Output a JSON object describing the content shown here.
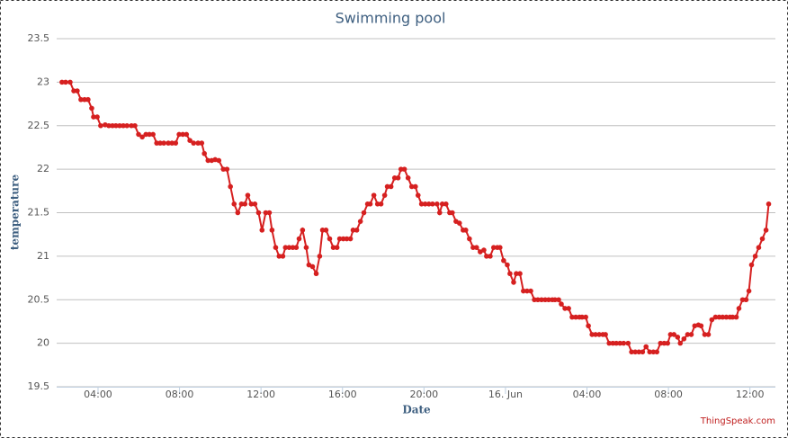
{
  "chart_data": {
    "type": "line",
    "title": "Swimming pool",
    "x_label": "Date",
    "y_label": "temperature",
    "credit": "ThingSpeak.com",
    "xlim": [
      1.97,
      37.25
    ],
    "ylim": [
      19.5,
      23.5
    ],
    "xticks": [
      {
        "value": 4,
        "label": "04:00"
      },
      {
        "value": 8,
        "label": "08:00"
      },
      {
        "value": 12,
        "label": "12:00"
      },
      {
        "value": 16,
        "label": "16:00"
      },
      {
        "value": 20,
        "label": "20:00"
      },
      {
        "value": 24,
        "label": "16. Jun"
      },
      {
        "value": 28,
        "label": "04:00"
      },
      {
        "value": 32,
        "label": "08:00"
      },
      {
        "value": 36,
        "label": "12:00"
      }
    ],
    "yticks": [
      19.5,
      20,
      20.5,
      21,
      21.5,
      22,
      22.5,
      23,
      23.5
    ],
    "grid": true,
    "series": [
      {
        "name": "temperature",
        "color": "#d62020",
        "x": [
          2.23,
          2.41,
          2.63,
          2.81,
          2.98,
          3.16,
          3.34,
          3.51,
          3.69,
          3.78,
          3.96,
          4.13,
          4.35,
          4.53,
          4.71,
          4.88,
          5.06,
          5.24,
          5.42,
          5.64,
          5.81,
          5.99,
          6.17,
          6.35,
          6.52,
          6.7,
          6.88,
          7.05,
          7.23,
          7.45,
          7.63,
          7.81,
          7.98,
          8.16,
          8.34,
          8.51,
          8.69,
          8.91,
          9.09,
          9.22,
          9.4,
          9.58,
          9.75,
          9.93,
          10.15,
          10.33,
          10.5,
          10.68,
          10.86,
          11.04,
          11.21,
          11.35,
          11.52,
          11.7,
          11.88,
          12.05,
          12.23,
          12.41,
          12.54,
          12.72,
          12.89,
          13.07,
          13.2,
          13.38,
          13.56,
          13.73,
          13.87,
          14.04,
          14.22,
          14.35,
          14.53,
          14.71,
          14.88,
          15.02,
          15.19,
          15.37,
          15.55,
          15.73,
          15.86,
          16.04,
          16.21,
          16.39,
          16.52,
          16.7,
          16.88,
          17.05,
          17.23,
          17.36,
          17.54,
          17.72,
          17.89,
          18.07,
          18.2,
          18.38,
          18.56,
          18.73,
          18.87,
          19.04,
          19.22,
          19.4,
          19.58,
          19.71,
          19.88,
          20.06,
          20.24,
          20.42,
          20.64,
          20.77,
          20.9,
          21.08,
          21.26,
          21.39,
          21.57,
          21.74,
          21.92,
          22.05,
          22.23,
          22.41,
          22.58,
          22.76,
          22.94,
          23.07,
          23.25,
          23.42,
          23.6,
          23.73,
          23.91,
          24.09,
          24.22,
          24.4,
          24.53,
          24.71,
          24.88,
          25.06,
          25.24,
          25.42,
          25.59,
          25.77,
          25.95,
          26.12,
          26.3,
          26.43,
          26.61,
          26.74,
          26.92,
          27.1,
          27.27,
          27.45,
          27.63,
          27.76,
          27.94,
          28.07,
          28.25,
          28.42,
          28.6,
          28.78,
          28.91,
          29.09,
          29.27,
          29.44,
          29.62,
          29.8,
          30.02,
          30.19,
          30.37,
          30.55,
          30.73,
          30.9,
          31.08,
          31.26,
          31.43,
          31.61,
          31.79,
          31.96,
          32.1,
          32.27,
          32.45,
          32.58,
          32.76,
          32.94,
          33.12,
          33.29,
          33.47,
          33.6,
          33.78,
          33.96,
          34.13,
          34.31,
          34.49,
          34.66,
          34.84,
          35.02,
          35.15,
          35.33,
          35.46,
          35.64,
          35.81,
          35.95,
          36.08,
          36.26,
          36.43,
          36.61,
          36.79,
          36.92
        ],
        "values": [
          23,
          23,
          23,
          22.9,
          22.9,
          22.8,
          22.8,
          22.8,
          22.7,
          22.6,
          22.6,
          22.5,
          22.51,
          22.5,
          22.5,
          22.5,
          22.5,
          22.5,
          22.5,
          22.5,
          22.5,
          22.4,
          22.37,
          22.4,
          22.4,
          22.4,
          22.3,
          22.3,
          22.3,
          22.3,
          22.3,
          22.3,
          22.4,
          22.4,
          22.4,
          22.33,
          22.3,
          22.3,
          22.3,
          22.18,
          22.1,
          22.1,
          22.11,
          22.1,
          22,
          22,
          21.8,
          21.6,
          21.5,
          21.6,
          21.6,
          21.7,
          21.6,
          21.6,
          21.5,
          21.3,
          21.5,
          21.5,
          21.3,
          21.1,
          21,
          21,
          21.1,
          21.1,
          21.1,
          21.1,
          21.2,
          21.3,
          21.1,
          20.9,
          20.88,
          20.8,
          21,
          21.3,
          21.3,
          21.2,
          21.1,
          21.1,
          21.2,
          21.2,
          21.2,
          21.2,
          21.3,
          21.3,
          21.4,
          21.5,
          21.6,
          21.6,
          21.7,
          21.6,
          21.6,
          21.7,
          21.8,
          21.8,
          21.9,
          21.9,
          22,
          22,
          21.9,
          21.8,
          21.8,
          21.7,
          21.6,
          21.6,
          21.6,
          21.6,
          21.6,
          21.5,
          21.6,
          21.6,
          21.5,
          21.5,
          21.4,
          21.38,
          21.3,
          21.3,
          21.2,
          21.1,
          21.1,
          21.05,
          21.07,
          21,
          21,
          21.1,
          21.1,
          21.1,
          20.95,
          20.9,
          20.8,
          20.7,
          20.8,
          20.8,
          20.6,
          20.6,
          20.6,
          20.5,
          20.5,
          20.5,
          20.5,
          20.5,
          20.5,
          20.5,
          20.5,
          20.45,
          20.4,
          20.4,
          20.3,
          20.3,
          20.3,
          20.3,
          20.3,
          20.2,
          20.1,
          20.1,
          20.1,
          20.1,
          20.1,
          20,
          20,
          20,
          20,
          20,
          20,
          19.9,
          19.9,
          19.9,
          19.9,
          19.96,
          19.9,
          19.9,
          19.9,
          20,
          20,
          20,
          20.1,
          20.1,
          20.07,
          20,
          20.05,
          20.1,
          20.1,
          20.2,
          20.21,
          20.2,
          20.1,
          20.1,
          20.27,
          20.3,
          20.3,
          20.3,
          20.3,
          20.3,
          20.3,
          20.3,
          20.4,
          20.5,
          20.5,
          20.6,
          20.9,
          21,
          21.1,
          21.2,
          21.3,
          21.6
        ]
      }
    ]
  }
}
